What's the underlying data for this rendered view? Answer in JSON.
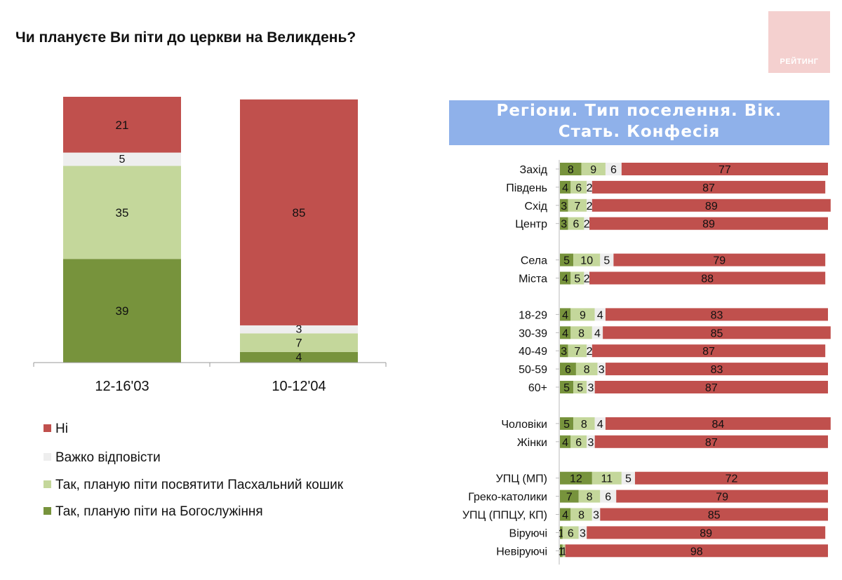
{
  "slide": {
    "title": "Чи плануєте Ви піти до церкви на Великдень?",
    "logo_text": "РЕЙТИНГ",
    "banner_line1": "Регіони. Тип поселення. Вік.",
    "banner_line2": "Стать. Конфесія"
  },
  "colors": {
    "no": "#c0504d",
    "hard": "#eeeeee",
    "basket": "#c4d79b",
    "service": "#77933c",
    "banner": "#8fb1ea",
    "logo": "#f4d0cf"
  },
  "legend": [
    {
      "label": "Ні",
      "color_key": "no"
    },
    {
      "label": "Важко відповісти",
      "color_key": "hard"
    },
    {
      "label": "Так, планую піти посвятити Пасхальний кошик",
      "color_key": "basket"
    },
    {
      "label": "Так, планую піти на Богослужіння",
      "color_key": "service"
    }
  ],
  "chart_data": [
    {
      "type": "bar",
      "stacked": true,
      "orientation": "vertical",
      "title": "Чи плануєте Ви піти до церкви на Великдень?",
      "categories": [
        "12-16'03",
        "10-12'04"
      ],
      "series": [
        {
          "name": "Так, планую піти на Богослужіння",
          "color_key": "service",
          "values": [
            39,
            4
          ]
        },
        {
          "name": "Так, планую піти посвятити Пасхальний кошик",
          "color_key": "basket",
          "values": [
            35,
            7
          ]
        },
        {
          "name": "Важко відповісти",
          "color_key": "hard",
          "values": [
            5,
            3
          ]
        },
        {
          "name": "Ні",
          "color_key": "no",
          "values": [
            21,
            85
          ]
        }
      ],
      "ylim": [
        0,
        100
      ],
      "unit": "%"
    },
    {
      "type": "bar",
      "stacked": true,
      "orientation": "horizontal",
      "title": "Регіони. Тип поселення. Вік. Стать. Конфесія",
      "groups": [
        {
          "name": "Регіони",
          "rows": [
            {
              "label": "Захід",
              "values": [
                8,
                9,
                6,
                77
              ]
            },
            {
              "label": "Південь",
              "values": [
                4,
                6,
                2,
                87
              ]
            },
            {
              "label": "Схід",
              "values": [
                3,
                7,
                2,
                89
              ]
            },
            {
              "label": "Центр",
              "values": [
                3,
                6,
                2,
                89
              ]
            }
          ]
        },
        {
          "name": "Тип поселення",
          "rows": [
            {
              "label": "Села",
              "values": [
                5,
                10,
                5,
                79
              ]
            },
            {
              "label": "Міста",
              "values": [
                4,
                5,
                2,
                88
              ]
            }
          ]
        },
        {
          "name": "Вік",
          "rows": [
            {
              "label": "18-29",
              "values": [
                4,
                9,
                4,
                83
              ]
            },
            {
              "label": "30-39",
              "values": [
                4,
                8,
                4,
                85
              ]
            },
            {
              "label": "40-49",
              "values": [
                3,
                7,
                2,
                87
              ]
            },
            {
              "label": "50-59",
              "values": [
                6,
                8,
                3,
                83
              ]
            },
            {
              "label": "60+",
              "values": [
                5,
                5,
                3,
                87
              ]
            }
          ]
        },
        {
          "name": "Стать",
          "rows": [
            {
              "label": "Чоловіки",
              "values": [
                5,
                8,
                4,
                84
              ]
            },
            {
              "label": "Жінки",
              "values": [
                4,
                6,
                3,
                87
              ]
            }
          ]
        },
        {
          "name": "Конфесія",
          "rows": [
            {
              "label": "УПЦ (МП)",
              "values": [
                12,
                11,
                5,
                72
              ]
            },
            {
              "label": "Греко-католики",
              "values": [
                7,
                8,
                6,
                79
              ]
            },
            {
              "label": "УПЦ (ППЦУ, КП)",
              "values": [
                4,
                8,
                3,
                85
              ]
            },
            {
              "label": "Віруючі",
              "values": [
                1,
                6,
                3,
                89
              ]
            },
            {
              "label": "Невіруючі",
              "values": [
                1,
                1,
                0,
                98
              ]
            }
          ]
        }
      ],
      "series_order": [
        "service",
        "basket",
        "hard",
        "no"
      ],
      "xlim": [
        0,
        100
      ],
      "unit": "%"
    }
  ]
}
